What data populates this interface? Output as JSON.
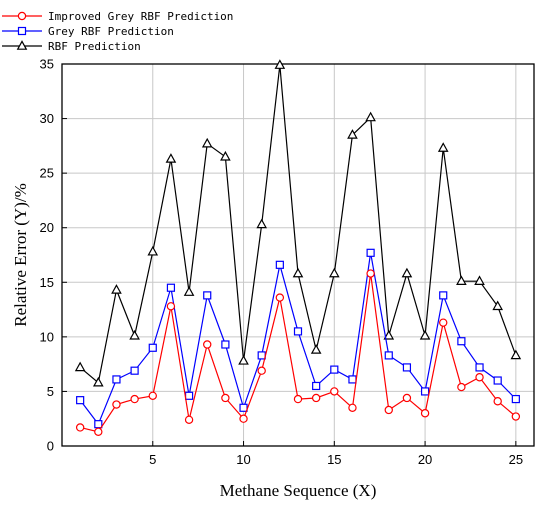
{
  "chart_data": {
    "type": "line",
    "title": "",
    "xlabel": "Methane Sequence (X)",
    "ylabel": "Relative Error (Y)/%",
    "xlim": [
      0,
      26
    ],
    "ylim": [
      0,
      35
    ],
    "x_ticks": [
      5,
      10,
      15,
      20,
      25
    ],
    "y_ticks": [
      0,
      5,
      10,
      15,
      20,
      25,
      30,
      35
    ],
    "grid": true,
    "legend_position": "top-left",
    "x": [
      1,
      2,
      3,
      4,
      5,
      6,
      7,
      8,
      9,
      10,
      11,
      12,
      13,
      14,
      15,
      16,
      17,
      18,
      19,
      20,
      21,
      22,
      23,
      24,
      25
    ],
    "series": [
      {
        "name": "Improved Grey RBF Prediction",
        "color": "#ff0000",
        "marker": "circle",
        "values": [
          1.7,
          1.3,
          3.8,
          4.3,
          4.6,
          12.8,
          2.4,
          9.3,
          4.4,
          2.5,
          6.9,
          13.6,
          4.3,
          4.4,
          5.0,
          3.5,
          15.8,
          3.3,
          4.4,
          3.0,
          11.3,
          5.4,
          6.3,
          4.1,
          2.7
        ]
      },
      {
        "name": "Grey RBF Prediction",
        "color": "#0000ff",
        "marker": "square",
        "values": [
          4.2,
          2.0,
          6.1,
          6.9,
          9.0,
          14.5,
          4.6,
          13.8,
          9.3,
          3.5,
          8.3,
          16.6,
          10.5,
          5.5,
          7.0,
          6.1,
          17.7,
          8.3,
          7.2,
          5.0,
          13.8,
          9.6,
          7.2,
          6.0,
          4.3
        ]
      },
      {
        "name": "RBF Prediction",
        "color": "#000000",
        "marker": "triangle",
        "values": [
          7.2,
          5.8,
          14.3,
          10.1,
          17.8,
          26.3,
          14.1,
          27.7,
          26.5,
          7.8,
          20.3,
          34.9,
          15.8,
          8.8,
          15.8,
          28.5,
          30.1,
          10.1,
          15.8,
          10.1,
          27.3,
          15.1,
          15.1,
          12.8,
          8.3
        ]
      }
    ]
  }
}
